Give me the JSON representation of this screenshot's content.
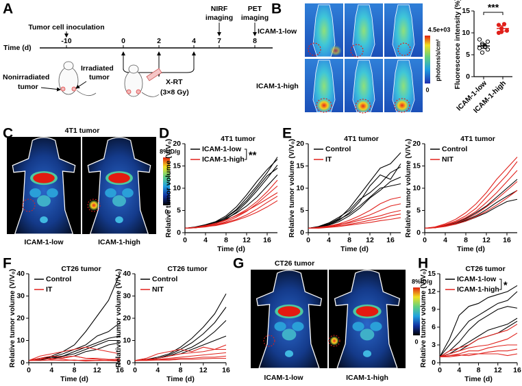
{
  "panels": {
    "labels": [
      "A",
      "B",
      "C",
      "D",
      "E",
      "F",
      "G",
      "H"
    ]
  },
  "timeline": {
    "inoculation": "Tumor cell inoculation",
    "nirf": [
      "NIRF",
      "imaging"
    ],
    "pet": [
      "PET",
      "imaging"
    ],
    "axis_label": "Time (d)",
    "ticks": [
      -10,
      0,
      2,
      4,
      7,
      8
    ],
    "treatment": [
      "X-RT",
      "(3×8 Gy)"
    ],
    "nonirradiated": [
      "Nonirradiated",
      "tumor"
    ],
    "irradiated": [
      "Irradiated",
      "tumor"
    ]
  },
  "nirf": {
    "rows": [
      "ICAM-1-low",
      "ICAM-1-high"
    ],
    "colorbar": {
      "max": "4.5e+03",
      "unit": "photons/s/cm²",
      "min": "0"
    }
  },
  "pet_4t1": {
    "title": "4T1 tumor",
    "labels": [
      "ICAM-1-low",
      "ICAM-1-high"
    ],
    "colorbar": {
      "max": "8%ID/g",
      "min": "0"
    }
  },
  "pet_ct26": {
    "title": "CT26 tumor",
    "labels": [
      "ICAM-1-low",
      "ICAM-1-high"
    ],
    "colorbar": {
      "max": "8%ID/g",
      "min": "0"
    }
  },
  "chart_data": [
    {
      "type": "strip",
      "ylabel": "Fluorescence intensity (%)",
      "categories": [
        "ICAM-1-low",
        "ICAM-1-high"
      ],
      "colors": [
        "#000000",
        "#e0201b"
      ],
      "markers": [
        "open",
        "filled"
      ],
      "points": [
        [
          6.5,
          5.5,
          7,
          8,
          8.5,
          7.5,
          6.8,
          6.2
        ],
        [
          10,
          11,
          12,
          10.5,
          11.8,
          10.2
        ]
      ],
      "means": [
        7,
        11
      ],
      "errors": [
        0.5,
        0.6
      ],
      "ylim": [
        0,
        15
      ],
      "yticks": [
        0,
        5,
        10,
        15
      ],
      "annotation": "***"
    },
    {
      "type": "line",
      "title": "4T1 tumor",
      "xlabel": "Time (d)",
      "ylabel": "Relative tumor volume (V/V₀)",
      "x": [
        0,
        2,
        4,
        6,
        8,
        10,
        12,
        14,
        16,
        18
      ],
      "xlim": [
        0,
        18
      ],
      "xticks": [
        0,
        4,
        8,
        12,
        16
      ],
      "ylim": [
        0,
        20
      ],
      "yticks": [
        0,
        5,
        10,
        15,
        20
      ],
      "annotation": "**",
      "series": [
        {
          "name": "ICAM-1-low",
          "color": "#000000",
          "values": [
            [
              1,
              1.2,
              1.6,
              2.2,
              3.5,
              5.2,
              7.8,
              10.5,
              13.5,
              17
            ],
            [
              1,
              1.3,
              1.8,
              2.5,
              3.8,
              5.8,
              8.5,
              11.5,
              14.2,
              16.5
            ],
            [
              1,
              1.1,
              1.5,
              2.0,
              3.0,
              4.6,
              6.8,
              9.4,
              12.2,
              15.2
            ],
            [
              1,
              1.2,
              1.7,
              2.4,
              3.4,
              5.0,
              7.2,
              10.0,
              12.8,
              14.5
            ],
            [
              1,
              1.2,
              1.6,
              2.1,
              3.2,
              4.4,
              6.0,
              8.0,
              10.5,
              13.0
            ]
          ]
        },
        {
          "name": "ICAM-1-high",
          "color": "#e0201b",
          "values": [
            [
              1,
              1.1,
              1.4,
              1.8,
              2.5,
              3.5,
              4.8,
              6.5,
              8.5,
              10.5
            ],
            [
              1,
              1.2,
              1.5,
              2.0,
              2.8,
              3.9,
              5.2,
              7.0,
              9.2,
              11.8
            ],
            [
              1,
              1.1,
              1.3,
              1.7,
              2.3,
              3.0,
              4.0,
              5.3,
              6.8,
              8.2
            ],
            [
              1,
              1.2,
              1.6,
              2.1,
              2.9,
              3.8,
              4.9,
              6.2,
              7.6,
              9.0
            ],
            [
              1,
              1.1,
              1.4,
              1.6,
              2.1,
              2.8,
              3.6,
              4.6,
              5.8,
              7.2
            ]
          ]
        }
      ]
    },
    {
      "type": "line",
      "title": "4T1 tumor",
      "xlabel": "Time (d)",
      "ylabel": "Relative tumor volume (V/V₀)",
      "x": [
        0,
        2,
        4,
        6,
        8,
        10,
        12,
        14,
        16,
        18
      ],
      "xlim": [
        0,
        18
      ],
      "xticks": [
        0,
        4,
        8,
        12,
        16
      ],
      "ylim": [
        0,
        20
      ],
      "yticks": [
        0,
        5,
        10,
        15,
        20
      ],
      "series": [
        {
          "name": "Control",
          "color": "#000000",
          "values": [
            [
              1,
              1.3,
              2.0,
              3.2,
              5.5,
              8.5,
              11.5,
              14.5,
              15.5,
              18
            ],
            [
              1,
              1.2,
              1.8,
              2.8,
              4.5,
              7.0,
              10.5,
              13.0,
              12.0,
              15.5
            ],
            [
              1,
              1.4,
              2.2,
              3.5,
              5.0,
              7.5,
              9.0,
              11.0,
              13.5,
              14.8
            ],
            [
              1,
              1.2,
              1.7,
              2.5,
              3.8,
              5.5,
              7.8,
              9.5,
              11.5,
              12.5
            ],
            [
              1,
              1.3,
              2.0,
              3.0,
              4.2,
              6.0,
              8.0,
              10.0,
              10.5,
              11.0
            ]
          ]
        },
        {
          "name": "IT",
          "color": "#e0201b",
          "values": [
            [
              1,
              1.2,
              1.5,
              2.0,
              2.8,
              3.8,
              5.0,
              6.5,
              7.5,
              8.0
            ],
            [
              1,
              1.1,
              1.4,
              1.8,
              2.4,
              3.2,
              4.0,
              5.0,
              6.0,
              6.5
            ],
            [
              1,
              1.2,
              1.5,
              1.9,
              2.2,
              2.8,
              3.3,
              3.8,
              4.5,
              5.0
            ],
            [
              1,
              1.1,
              1.3,
              1.6,
              1.9,
              2.3,
              2.8,
              3.2,
              3.8,
              4.2
            ],
            [
              1,
              1.0,
              1.2,
              1.4,
              1.7,
              2.0,
              2.3,
              2.7,
              3.0,
              3.4
            ]
          ]
        }
      ]
    },
    {
      "type": "line",
      "title": "4T1 tumor",
      "xlabel": "Time (d)",
      "ylabel": "Relative tumor volume (V/V₀)",
      "x": [
        0,
        2,
        4,
        6,
        8,
        10,
        12,
        14,
        16,
        18
      ],
      "xlim": [
        0,
        18
      ],
      "xticks": [
        0,
        4,
        8,
        12,
        16
      ],
      "ylim": [
        0,
        20
      ],
      "yticks": [
        0,
        5,
        10,
        15,
        20
      ],
      "series": [
        {
          "name": "Control",
          "color": "#000000",
          "values": [
            [
              1,
              1.2,
              1.6,
              2.2,
              3.2,
              4.5,
              6.0,
              8.0,
              10.0,
              12.0
            ],
            [
              1,
              1.1,
              1.5,
              2.0,
              2.8,
              3.8,
              5.2,
              6.8,
              8.2,
              9.5
            ],
            [
              1,
              1.2,
              1.5,
              1.9,
              2.6,
              3.5,
              4.5,
              5.8,
              7.0,
              7.5
            ]
          ]
        },
        {
          "name": "NIT",
          "color": "#e0201b",
          "values": [
            [
              1,
              1.3,
              2.0,
              3.0,
              4.5,
              6.5,
              9.0,
              12.0,
              14.5,
              17
            ],
            [
              1,
              1.2,
              1.8,
              2.6,
              3.8,
              5.5,
              8.0,
              10.5,
              13.0,
              16
            ],
            [
              1,
              1.2,
              1.7,
              2.4,
              3.4,
              4.8,
              6.8,
              9.0,
              11.5,
              14
            ],
            [
              1,
              1.1,
              1.5,
              2.1,
              3.0,
              4.2,
              5.8,
              7.5,
              9.5,
              11.5
            ],
            [
              1,
              1.1,
              1.4,
              1.9,
              2.6,
              3.6,
              4.8,
              6.2,
              7.8,
              9.5
            ]
          ]
        }
      ]
    },
    {
      "type": "line",
      "title": "CT26 tumor",
      "xlabel": "Time (d)",
      "ylabel": "Relative tumor volume (V/V₀)",
      "x": [
        0,
        2,
        4,
        6,
        8,
        10,
        12,
        14,
        16
      ],
      "xlim": [
        0,
        16
      ],
      "xticks": [
        0,
        4,
        8,
        12,
        16
      ],
      "ylim": [
        0,
        40
      ],
      "yticks": [
        0,
        10,
        20,
        30,
        40
      ],
      "series": [
        {
          "name": "Control",
          "color": "#000000",
          "values": [
            [
              1,
              2,
              3,
              5,
              8,
              14,
              21,
              28,
              40
            ],
            [
              1,
              1.5,
              2.5,
              4,
              6,
              8,
              12,
              14,
              18
            ],
            [
              1,
              2,
              2.5,
              3,
              5,
              7,
              9,
              11,
              12
            ],
            [
              1,
              1.2,
              2,
              3,
              4,
              6,
              8,
              10,
              10
            ],
            [
              1,
              1.5,
              2,
              2.5,
              3,
              5,
              6,
              8,
              9
            ]
          ]
        },
        {
          "name": "IT",
          "color": "#e0201b",
          "values": [
            [
              1,
              3,
              4,
              5,
              6,
              7,
              6,
              5,
              4
            ],
            [
              1,
              2,
              3,
              2.5,
              3,
              2,
              2,
              1.5,
              1.5
            ],
            [
              1,
              1.5,
              2,
              1.5,
              1,
              1.2,
              1,
              1,
              0.8
            ],
            [
              1,
              1,
              1.2,
              1,
              1.2,
              0.8,
              1,
              1.2,
              1
            ],
            [
              1,
              2,
              1.5,
              2,
              3,
              2,
              1.5,
              1,
              2
            ]
          ]
        }
      ]
    },
    {
      "type": "line",
      "title": "CT26 tumor",
      "xlabel": "Time (d)",
      "ylabel": "Relative tumor volume (V/V₀)",
      "x": [
        0,
        2,
        4,
        6,
        8,
        10,
        12,
        14,
        16
      ],
      "xlim": [
        0,
        16
      ],
      "xticks": [
        0,
        4,
        8,
        12,
        16
      ],
      "ylim": [
        0,
        40
      ],
      "yticks": [
        0,
        10,
        20,
        30,
        40
      ],
      "series": [
        {
          "name": "Control",
          "color": "#000000",
          "values": [
            [
              1,
              1.5,
              2.5,
              4,
              7,
              11,
              16,
              22,
              31
            ],
            [
              1,
              1.5,
              2,
              3.5,
              6,
              9,
              13,
              18,
              25
            ],
            [
              1,
              1.2,
              2,
              3,
              5,
              7,
              10,
              14,
              19
            ],
            [
              1,
              1.5,
              2,
              3,
              4,
              6,
              8,
              10,
              12
            ]
          ]
        },
        {
          "name": "NIT",
          "color": "#e0201b",
          "values": [
            [
              1,
              2,
              4,
              5,
              6,
              5,
              7,
              6,
              8
            ],
            [
              1,
              1.5,
              2,
              3,
              4,
              4.5,
              5,
              6,
              6
            ],
            [
              1,
              1.2,
              1.5,
              2,
              2.5,
              3,
              3.5,
              4,
              4.5
            ],
            [
              1,
              1.2,
              1.5,
              1.5,
              2,
              2,
              2.5,
              2.5,
              3
            ],
            [
              1,
              1,
              1.2,
              1.2,
              1.5,
              1.5,
              1.8,
              2,
              2
            ]
          ]
        }
      ]
    },
    {
      "type": "line",
      "title": "CT26 tumor",
      "xlabel": "Time (d)",
      "ylabel": "Relative tumor volume (V/V₀)",
      "x": [
        0,
        2,
        4,
        6,
        8,
        10,
        12,
        14,
        16
      ],
      "xlim": [
        0,
        16
      ],
      "xticks": [
        0,
        4,
        8,
        12,
        16
      ],
      "ylim": [
        0,
        15
      ],
      "yticks": [
        0,
        3,
        6,
        9,
        12,
        15
      ],
      "annotation": "*",
      "series": [
        {
          "name": "ICAM-1-low",
          "color": "#000000",
          "values": [
            [
              1,
              4,
              8,
              9.5,
              10,
              11,
              11.5,
              12,
              13
            ],
            [
              1,
              3,
              5,
              7,
              8,
              9,
              10,
              10.5,
              12
            ],
            [
              1,
              2,
              3.5,
              5.5,
              7,
              8,
              9,
              9.5,
              9.2
            ],
            [
              1,
              1.5,
              2.5,
              3.5,
              4.5,
              5.5,
              6,
              6.5,
              7.5
            ],
            [
              1,
              1.5,
              2,
              3,
              4,
              4.5,
              5,
              6,
              7
            ]
          ]
        },
        {
          "name": "ICAM-1-high",
          "color": "#e0201b",
          "values": [
            [
              1,
              2,
              2.5,
              3,
              4,
              4.5,
              5,
              5.5,
              6.5
            ],
            [
              1,
              1.5,
              2,
              2.5,
              2.8,
              3,
              3.5,
              4,
              5
            ],
            [
              1,
              1.2,
              1.5,
              2,
              2,
              2.5,
              2.8,
              3,
              3
            ],
            [
              1,
              1,
              1.2,
              1.5,
              1.5,
              1.8,
              2,
              2,
              2.3
            ],
            [
              1,
              1.2,
              1.3,
              1.2,
              1.5,
              1.5,
              1.5,
              1.2,
              1.5
            ]
          ]
        }
      ]
    }
  ]
}
